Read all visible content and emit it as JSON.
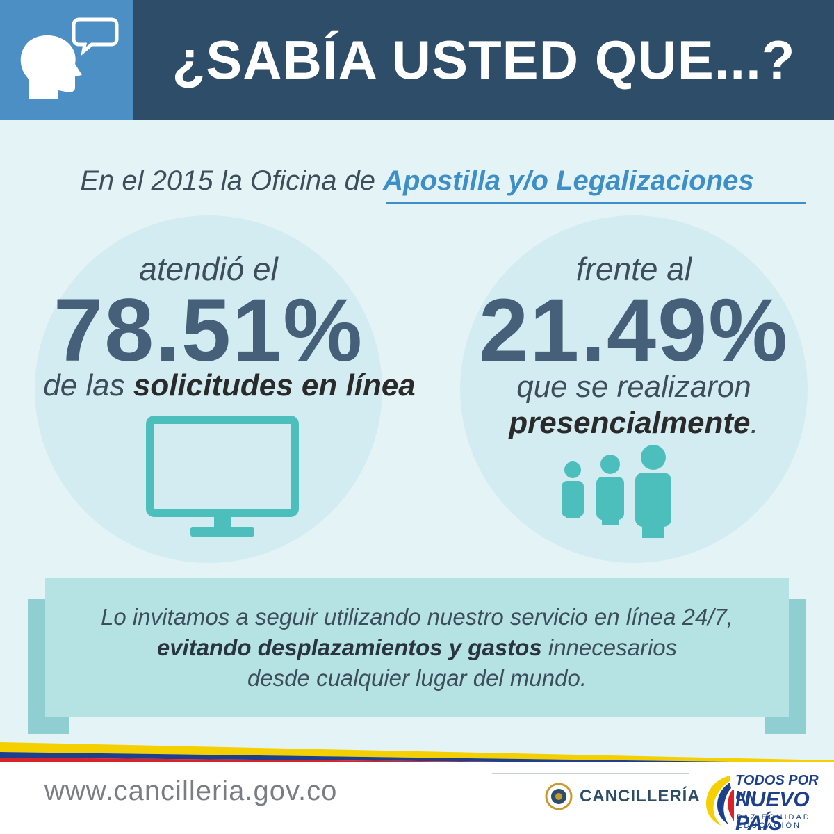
{
  "header": {
    "title": "¿SABÍA USTED QUE...?"
  },
  "intro": {
    "lead": "En el 2015 la Oficina de ",
    "office": "Apostilla y/o Legalizaciones"
  },
  "online_stat": {
    "pre": "atendió el",
    "value": "78.51%",
    "post_plain": "de las ",
    "post_strong": "solicitudes en línea"
  },
  "inperson_stat": {
    "pre": "frente al",
    "value": "21.49%",
    "post_line1": "que se realizaron",
    "post_strong": "presencialmente",
    "post_end": "."
  },
  "banner": {
    "line1": "Lo invitamos a seguir utilizando nuestro servicio en línea 24/7,",
    "line2_strong": "evitando desplazamientos y gastos",
    "line2_plain": " innecesarios",
    "line3": "desde cualquier lugar del mundo."
  },
  "footer": {
    "url": "www.cancilleria.gov.co",
    "ministry_name": "CANCILLERÍA",
    "gov_line1": "TODOS POR UN",
    "gov_line2": "NUEVO PAÍS",
    "gov_line3": "PAZ  EQUIDAD  EDUCACIÓN"
  },
  "colors": {
    "header_bg": "#2e4d68",
    "icon_box_bg": "#4b8fc4",
    "accent_blue": "#3e8ec8",
    "teal_icon": "#4cbfbd",
    "flag_yellow": "#f5d000",
    "flag_blue": "#1d3f8c",
    "flag_red": "#d8232a"
  },
  "icons": [
    "head-speech-icon",
    "monitor-icon",
    "people-icon",
    "ministry-seal-icon",
    "colombia-wing-logo"
  ]
}
